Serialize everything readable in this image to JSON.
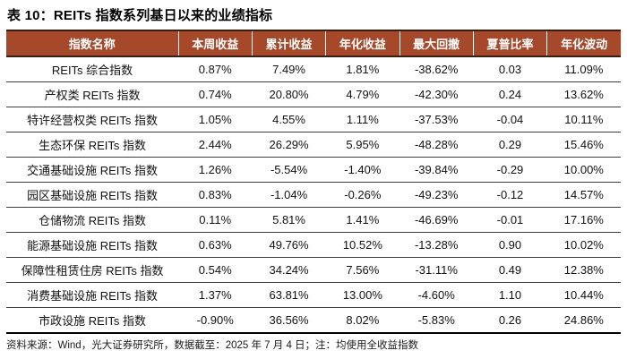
{
  "title": "表 10：REITs 指数系列基日以来的业绩指标",
  "chart_data": {
    "type": "table",
    "columns": [
      "指数名称",
      "本周收益",
      "累计收益",
      "年化收益",
      "最大回撤",
      "夏普比率",
      "年化波动"
    ],
    "rows": [
      [
        "REITs 综合指数",
        "0.87%",
        "7.49%",
        "1.81%",
        "-38.62%",
        "0.03",
        "11.09%"
      ],
      [
        "产权类 REITs 指数",
        "0.74%",
        "20.80%",
        "4.79%",
        "-42.30%",
        "0.24",
        "13.62%"
      ],
      [
        "特许经营权类 REITs 指数",
        "1.05%",
        "4.55%",
        "1.11%",
        "-37.53%",
        "-0.04",
        "10.11%"
      ],
      [
        "生态环保 REITs 指数",
        "2.44%",
        "26.29%",
        "5.95%",
        "-48.28%",
        "0.29",
        "15.46%"
      ],
      [
        "交通基础设施 REITs 指数",
        "1.26%",
        "-5.54%",
        "-1.40%",
        "-39.84%",
        "-0.29",
        "10.00%"
      ],
      [
        "园区基础设施 REITs 指数",
        "0.83%",
        "-1.04%",
        "-0.26%",
        "-49.23%",
        "-0.12",
        "14.57%"
      ],
      [
        "仓储物流 REITs 指数",
        "0.11%",
        "5.81%",
        "1.41%",
        "-46.69%",
        "-0.01",
        "17.16%"
      ],
      [
        "能源基础设施 REITs 指数",
        "0.63%",
        "49.76%",
        "10.52%",
        "-13.28%",
        "0.90",
        "10.02%"
      ],
      [
        "保障性租赁住房 REITs 指数",
        "0.54%",
        "34.24%",
        "7.56%",
        "-31.11%",
        "0.49",
        "12.38%"
      ],
      [
        "消费基础设施 REITs 指数",
        "1.37%",
        "63.81%",
        "13.00%",
        "-4.60%",
        "1.10",
        "10.44%"
      ],
      [
        "市政设施 REITs 指数",
        "-0.90%",
        "36.56%",
        "8.02%",
        "-5.83%",
        "0.26",
        "24.86%"
      ]
    ]
  },
  "footer": {
    "source_note": "资料来源：Wind，光大证券研究所，数据截至：2025 年 7 月 4 日；注：均使用全收益指数"
  },
  "colors": {
    "header_bg": "#A6492A",
    "header_text": "#FFFFFF",
    "header_border": "#3A1D0E",
    "row_line": "#3C3C3C",
    "table_bottom_border": "#000000",
    "body_text": "#111111"
  }
}
